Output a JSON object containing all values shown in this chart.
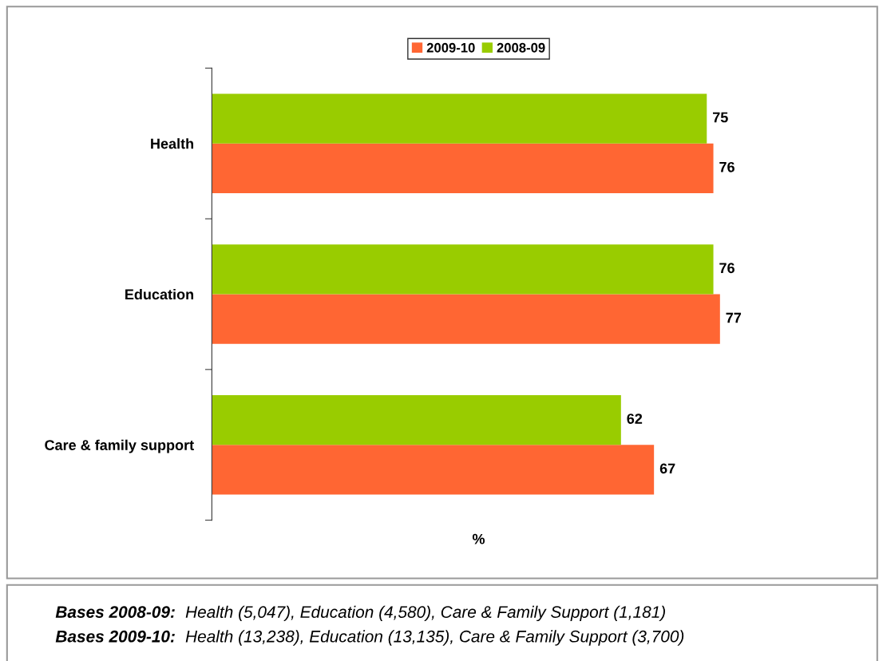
{
  "chart_data": {
    "type": "bar",
    "orientation": "horizontal",
    "categories": [
      "Health",
      "Education",
      "Care & family support"
    ],
    "series": [
      {
        "name": "2009-10",
        "color": "#ff6633",
        "values": [
          76,
          77,
          67
        ]
      },
      {
        "name": "2008-09",
        "color": "#99cc00",
        "values": [
          75,
          76,
          62
        ]
      }
    ],
    "xlabel": "%",
    "data_labels": true,
    "legend": "top",
    "grid": false,
    "annotations": [
      "Bases 2008-09:  Health (5,047), Education (4,580), Care & Family Support (1,181)",
      "Bases 2009-10:  Health (13,238), Education (13,135), Care & Family Support (3,700)"
    ]
  }
}
